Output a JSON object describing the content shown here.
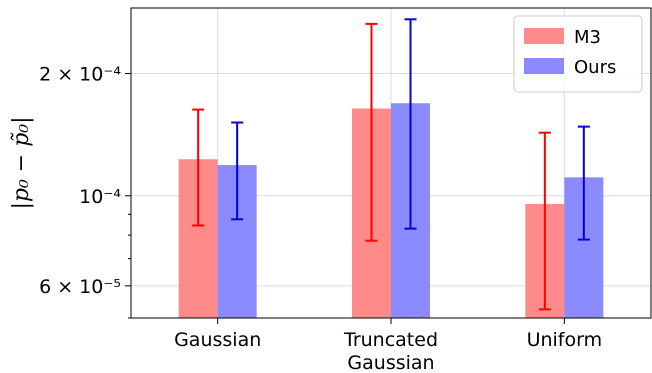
{
  "chart_data": {
    "type": "bar",
    "categories": [
      [
        "Gaussian"
      ],
      [
        "Truncated",
        "Gaussian"
      ],
      [
        "Uniform"
      ]
    ],
    "ylabel": "|p₀ − p̃₀|",
    "yscale": "log",
    "ylim": [
      5e-05,
      0.00029
    ],
    "y_ticks": [
      {
        "value": 6e-05,
        "label": "6 × 10⁻⁵"
      },
      {
        "value": 0.0001,
        "label": "10⁻⁴"
      },
      {
        "value": 0.0002,
        "label": "2 × 10⁻⁴"
      }
    ],
    "grid": true,
    "legend_position": "top-right",
    "series": [
      {
        "name": "M3",
        "color": "#ff8a8a",
        "error_color": "#ff0000",
        "values": [
          0.000123,
          0.000164,
          9.55e-05
        ],
        "err_low": [
          8.45e-05,
          7.75e-05,
          5.25e-05
        ],
        "err_high": [
          0.000163,
          0.000265,
          0.000143
        ]
      },
      {
        "name": "Ours",
        "color": "#8b8bff",
        "error_color": "#0000dd",
        "values": [
          0.000119,
          0.000169,
          0.000111
        ],
        "err_low": [
          8.75e-05,
          8.3e-05,
          7.8e-05
        ],
        "err_high": [
          0.0001515,
          0.000272,
          0.000148
        ]
      }
    ]
  }
}
